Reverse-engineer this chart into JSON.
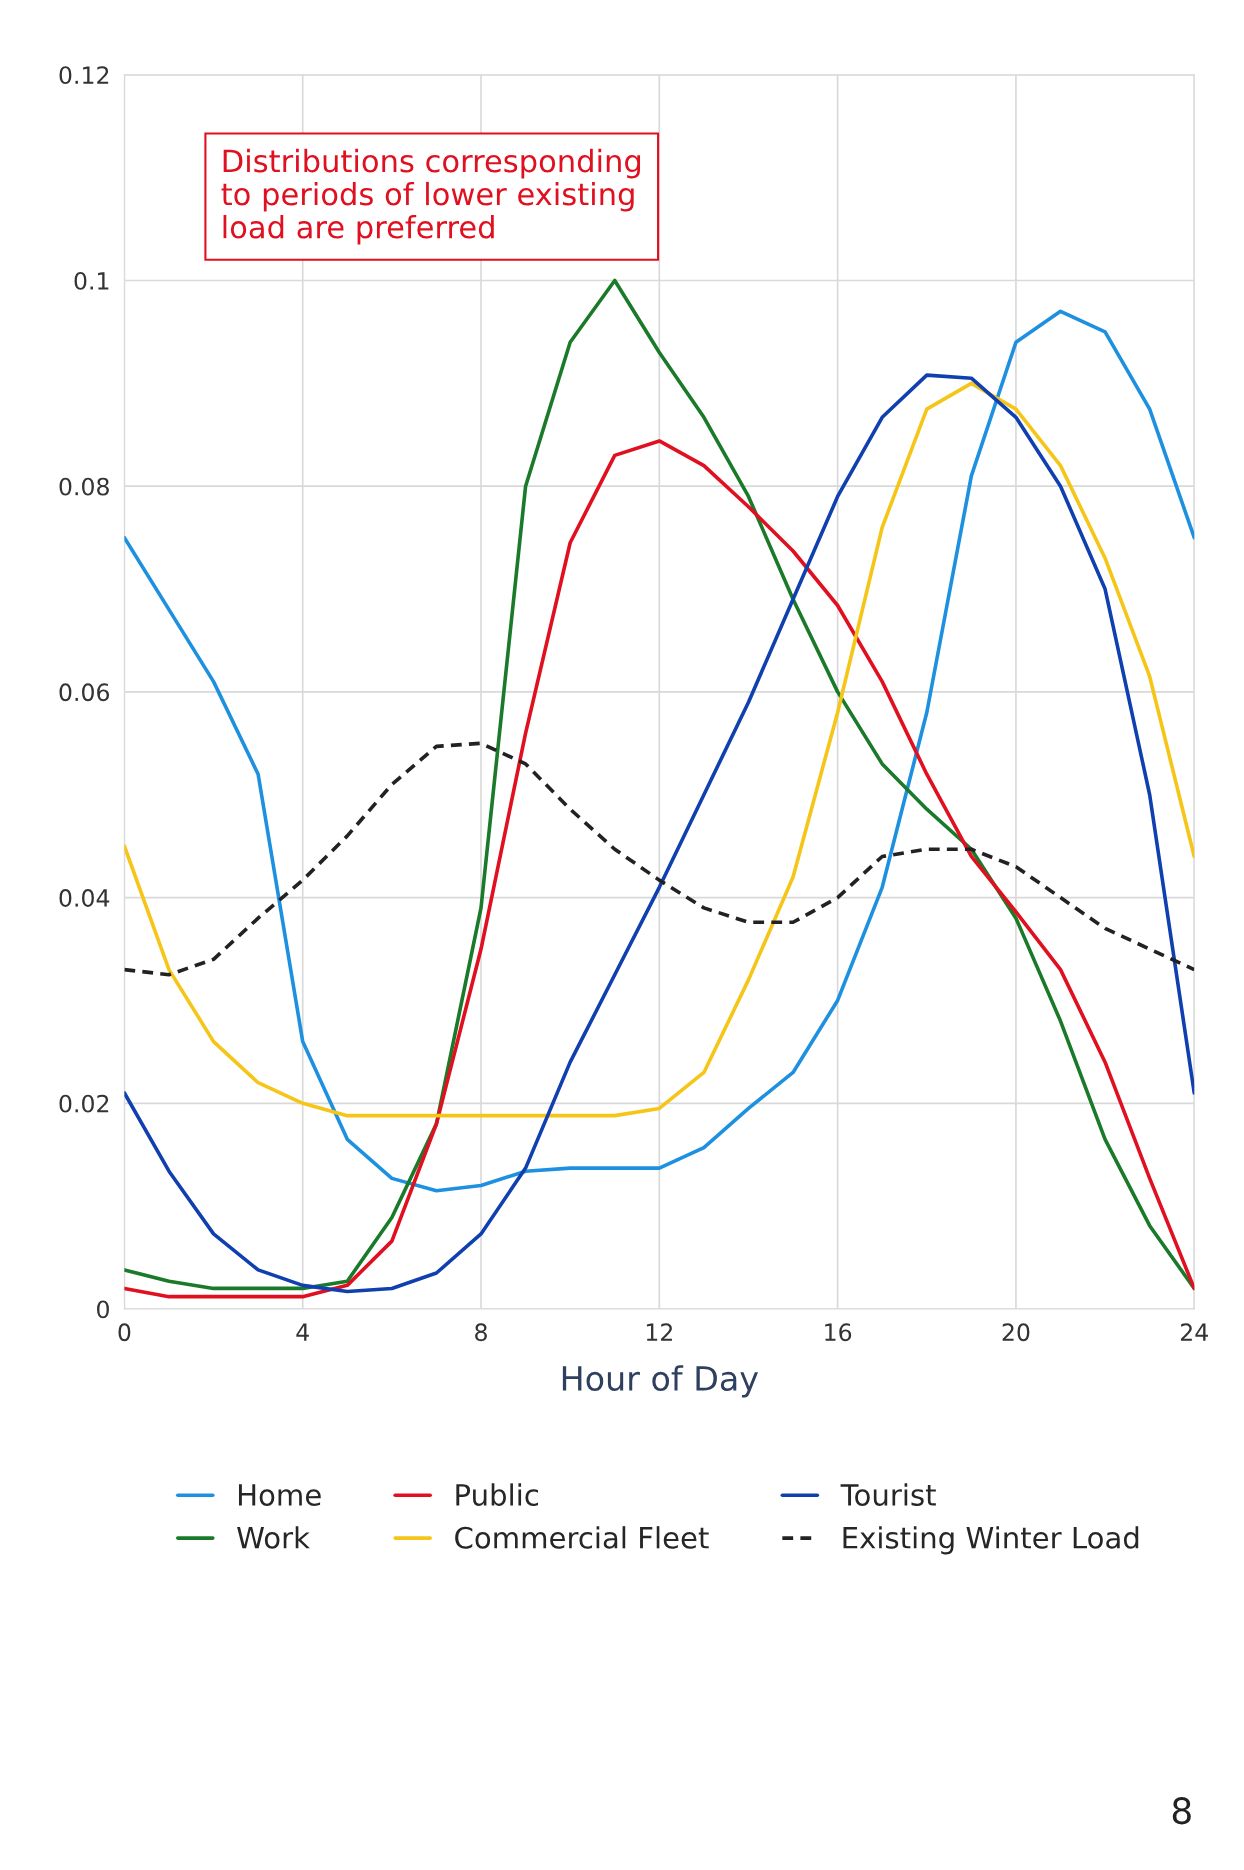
{
  "chart_data": {
    "type": "line",
    "xlabel": "Hour of Day",
    "x": [
      0,
      1,
      2,
      3,
      4,
      5,
      6,
      7,
      8,
      9,
      10,
      11,
      12,
      13,
      14,
      15,
      16,
      17,
      18,
      19,
      20,
      21,
      22,
      23,
      24
    ],
    "series": [
      {
        "name": "Home",
        "color": "#1e90e0",
        "values": [
          0.075,
          0.068,
          0.061,
          0.052,
          0.026,
          0.0165,
          0.0127,
          0.0115,
          0.012,
          0.0134,
          0.0137,
          0.0137,
          0.0137,
          0.0157,
          0.0195,
          0.023,
          0.03,
          0.041,
          0.058,
          0.081,
          0.094,
          0.097,
          0.095,
          0.0875,
          0.075
        ]
      },
      {
        "name": "Work",
        "color": "#1a7a2a",
        "values": [
          0.0038,
          0.0027,
          0.002,
          0.002,
          0.002,
          0.0027,
          0.0089,
          0.018,
          0.039,
          0.08,
          0.094,
          0.1,
          0.093,
          0.0867,
          0.079,
          0.069,
          0.06,
          0.053,
          0.0486,
          0.0447,
          0.038,
          0.028,
          0.0165,
          0.0081,
          0.002
        ]
      },
      {
        "name": "Public",
        "color": "#e01020",
        "values": [
          0.002,
          0.0012,
          0.0012,
          0.0012,
          0.0012,
          0.0023,
          0.0066,
          0.018,
          0.035,
          0.056,
          0.0745,
          0.083,
          0.0844,
          0.082,
          0.078,
          0.0737,
          0.0684,
          0.061,
          0.052,
          0.044,
          0.0386,
          0.033,
          0.024,
          0.0127,
          0.002
        ]
      },
      {
        "name": "Commercial Fleet",
        "color": "#f5c518",
        "values": [
          0.045,
          0.033,
          0.026,
          0.022,
          0.02,
          0.0188,
          0.0188,
          0.0188,
          0.0188,
          0.0188,
          0.0188,
          0.0188,
          0.0195,
          0.023,
          0.032,
          0.042,
          0.058,
          0.076,
          0.0875,
          0.09,
          0.0875,
          0.082,
          0.073,
          0.0615,
          0.044
        ]
      },
      {
        "name": "Tourist",
        "color": "#1040b0",
        "values": [
          0.021,
          0.0134,
          0.0073,
          0.0038,
          0.0023,
          0.0017,
          0.002,
          0.0035,
          0.0073,
          0.0137,
          0.024,
          0.0325,
          0.041,
          0.05,
          0.059,
          0.069,
          0.079,
          0.0867,
          0.0908,
          0.0905,
          0.0867,
          0.08,
          0.07,
          0.05,
          0.021
        ]
      },
      {
        "name": "Existing Winter Load",
        "color": "#222222",
        "line_style": "dashed",
        "values": [
          0.033,
          0.0325,
          0.034,
          0.038,
          0.0417,
          0.046,
          0.051,
          0.0547,
          0.055,
          0.053,
          0.0486,
          0.0447,
          0.0417,
          0.039,
          0.0376,
          0.0376,
          0.04,
          0.044,
          0.0447,
          0.0447,
          0.043,
          0.04,
          0.037,
          0.035,
          0.033
        ]
      }
    ],
    "xlim": [
      0,
      24
    ],
    "xticks": [
      0,
      4,
      8,
      12,
      16,
      20,
      24
    ],
    "ylim": [
      0,
      0.12
    ],
    "yticks": [
      0,
      0.02,
      0.04,
      0.06,
      0.08,
      0.1,
      0.12
    ],
    "grid": true,
    "legend": "bottom",
    "line_style": "solid",
    "annotations": [
      "Distributions corresponding\nto periods of lower existing\nload are preferred",
      "8"
    ]
  }
}
